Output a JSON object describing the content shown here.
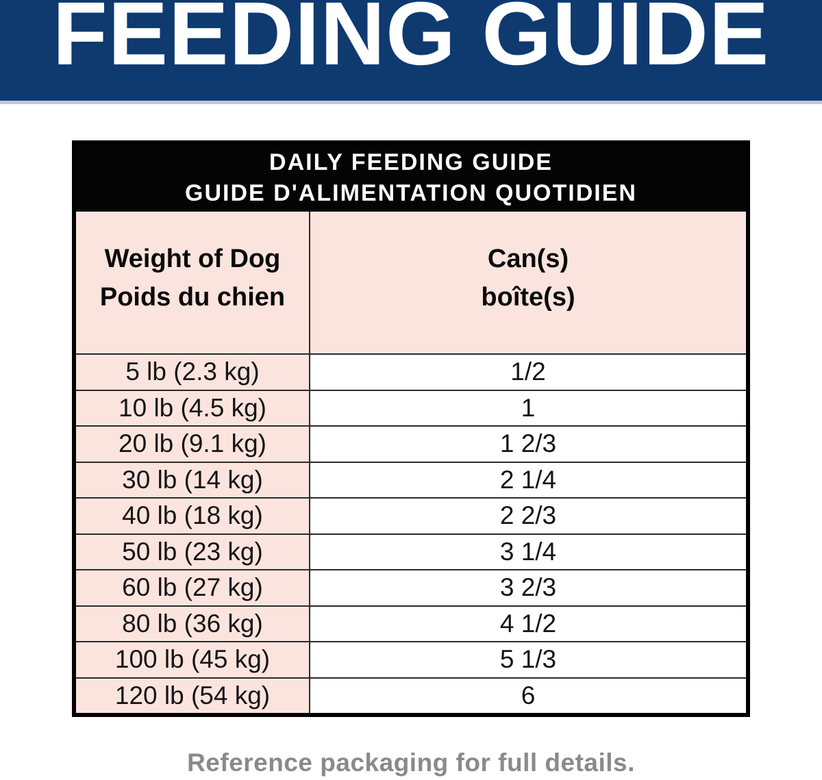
{
  "banner": {
    "title": "FEEDING GUIDE"
  },
  "table": {
    "title_line1": "DAILY FEEDING GUIDE",
    "title_line2": "GUIDE D'ALIMENTATION QUOTIDIEN",
    "columns": {
      "weight_header_en": "Weight of Dog",
      "weight_header_fr": "Poids du chien",
      "cans_header_en": "Can(s)",
      "cans_header_fr": "boîte(s)"
    },
    "rows": [
      {
        "weight": "5 lb (2.3 kg)",
        "cans": "1/2"
      },
      {
        "weight": "10 lb (4.5 kg)",
        "cans": "1"
      },
      {
        "weight": "20 lb (9.1 kg)",
        "cans": "1 2/3"
      },
      {
        "weight": "30 lb (14 kg)",
        "cans": "2 1/4"
      },
      {
        "weight": "40 lb (18 kg)",
        "cans": "2 2/3"
      },
      {
        "weight": "50 lb (23 kg)",
        "cans": "3 1/4"
      },
      {
        "weight": "60 lb (27 kg)",
        "cans": "3 2/3"
      },
      {
        "weight": "80 lb (36 kg)",
        "cans": "4 1/2"
      },
      {
        "weight": "100 lb (45 kg)",
        "cans": "5 1/3"
      },
      {
        "weight": "120 lb (54 kg)",
        "cans": "6"
      }
    ]
  },
  "footer": {
    "note": "Reference packaging for full details."
  },
  "colors": {
    "banner_navy": "#0e3a70",
    "banner_edge_light": "#bcc9da",
    "cell_pink": "#fce4de",
    "band_black": "#040404",
    "grid_line": "#2a2a2a",
    "footer_gray": "#8a8a8c",
    "text_dark": "#141414"
  }
}
